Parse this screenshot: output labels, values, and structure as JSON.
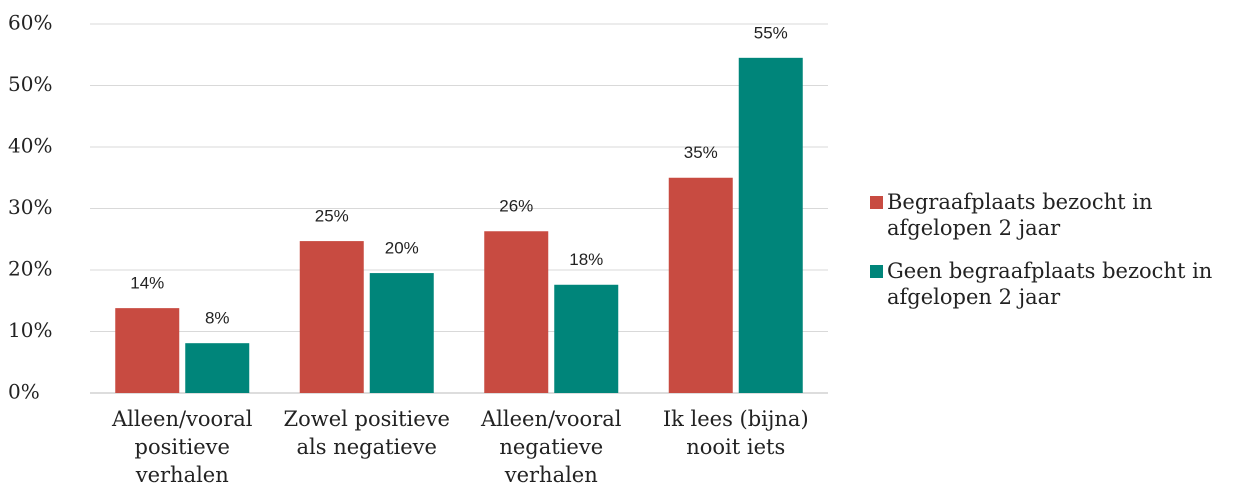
{
  "chart_data": {
    "type": "bar",
    "categories": [
      "Alleen/vooral positieve verhalen",
      "Zowel positieve als negatieve",
      "Alleen/vooral negatieve verhalen",
      "Ik lees (bijna) nooit iets"
    ],
    "series": [
      {
        "name": "Begraafplaats bezocht in afgelopen 2 jaar",
        "color": "#c84b41",
        "values": [
          13.8,
          24.7,
          26.3,
          35.0
        ],
        "value_labels": [
          "14%",
          "25%",
          "26%",
          "35%"
        ]
      },
      {
        "name": "Geen begraafplaats bezocht in afgelopen 2 jaar",
        "color": "#00857a",
        "values": [
          8.1,
          19.5,
          17.6,
          54.5
        ],
        "value_labels": [
          "8%",
          "20%",
          "18%",
          "55%"
        ]
      }
    ],
    "ylim": [
      0,
      60
    ],
    "yticks": [
      {
        "value": 0,
        "label": "0%"
      },
      {
        "value": 10,
        "label": "10%"
      },
      {
        "value": 20,
        "label": "20%"
      },
      {
        "value": 30,
        "label": "30%"
      },
      {
        "value": 40,
        "label": "40%"
      },
      {
        "value": 50,
        "label": "50%"
      },
      {
        "value": 60,
        "label": "60%"
      }
    ],
    "grid": true,
    "legend": "right"
  }
}
